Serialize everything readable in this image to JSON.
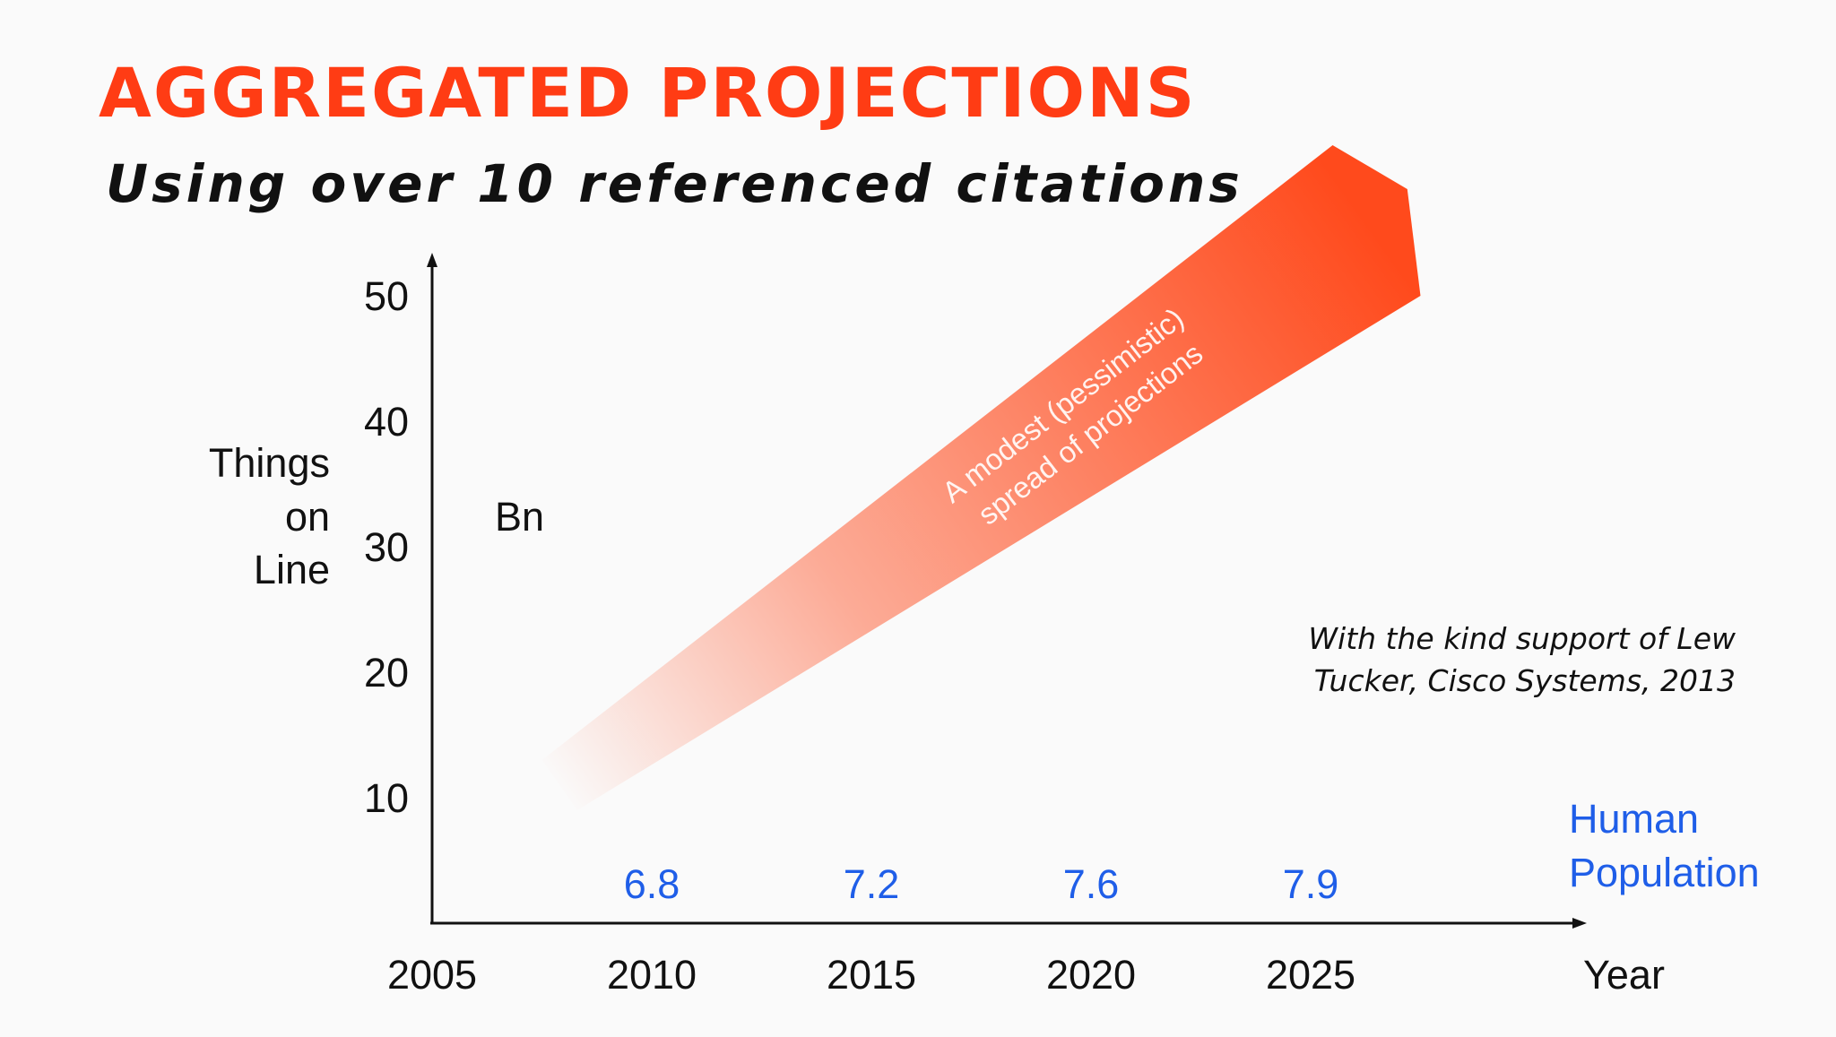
{
  "title": "AGGREGATED PROJECTIONS",
  "subtitle": "Using over 10 referenced citations",
  "chart_data": {
    "type": "area",
    "xlabel": "Year",
    "ylabel_lines": [
      "Things",
      "on",
      "Line"
    ],
    "unit_label": "Bn",
    "xlim": [
      2005,
      2030
    ],
    "ylim": [
      0,
      55
    ],
    "x_ticks": [
      "2005",
      "2010",
      "2015",
      "2020",
      "2025"
    ],
    "y_ticks": [
      "10",
      "20",
      "30",
      "40",
      "50"
    ],
    "grid": false,
    "projection_band": {
      "label_lines": [
        "A modest (pessimistic)",
        "spread of projections"
      ],
      "color": "#ff4a1c",
      "upper": [
        {
          "x": 2007.5,
          "y": 13
        },
        {
          "x": 2025.5,
          "y": 62
        }
      ],
      "lower": [
        {
          "x": 2008.3,
          "y": 9
        },
        {
          "x": 2027.5,
          "y": 50
        }
      ]
    },
    "population_series": {
      "name_lines": [
        "Human",
        "Population"
      ],
      "color": "#1f5ee8",
      "points": [
        {
          "x": 2010,
          "value": "6.8"
        },
        {
          "x": 2015,
          "value": "7.2"
        },
        {
          "x": 2020,
          "value": "7.6"
        },
        {
          "x": 2025,
          "value": "7.9"
        }
      ]
    }
  },
  "credit_lines": [
    "With the kind support of Lew",
    "Tucker, Cisco Systems, 2013"
  ],
  "colors": {
    "title": "#ff3c14",
    "text": "#111111",
    "blue": "#1f5ee8",
    "band": "#ff4a1c"
  }
}
